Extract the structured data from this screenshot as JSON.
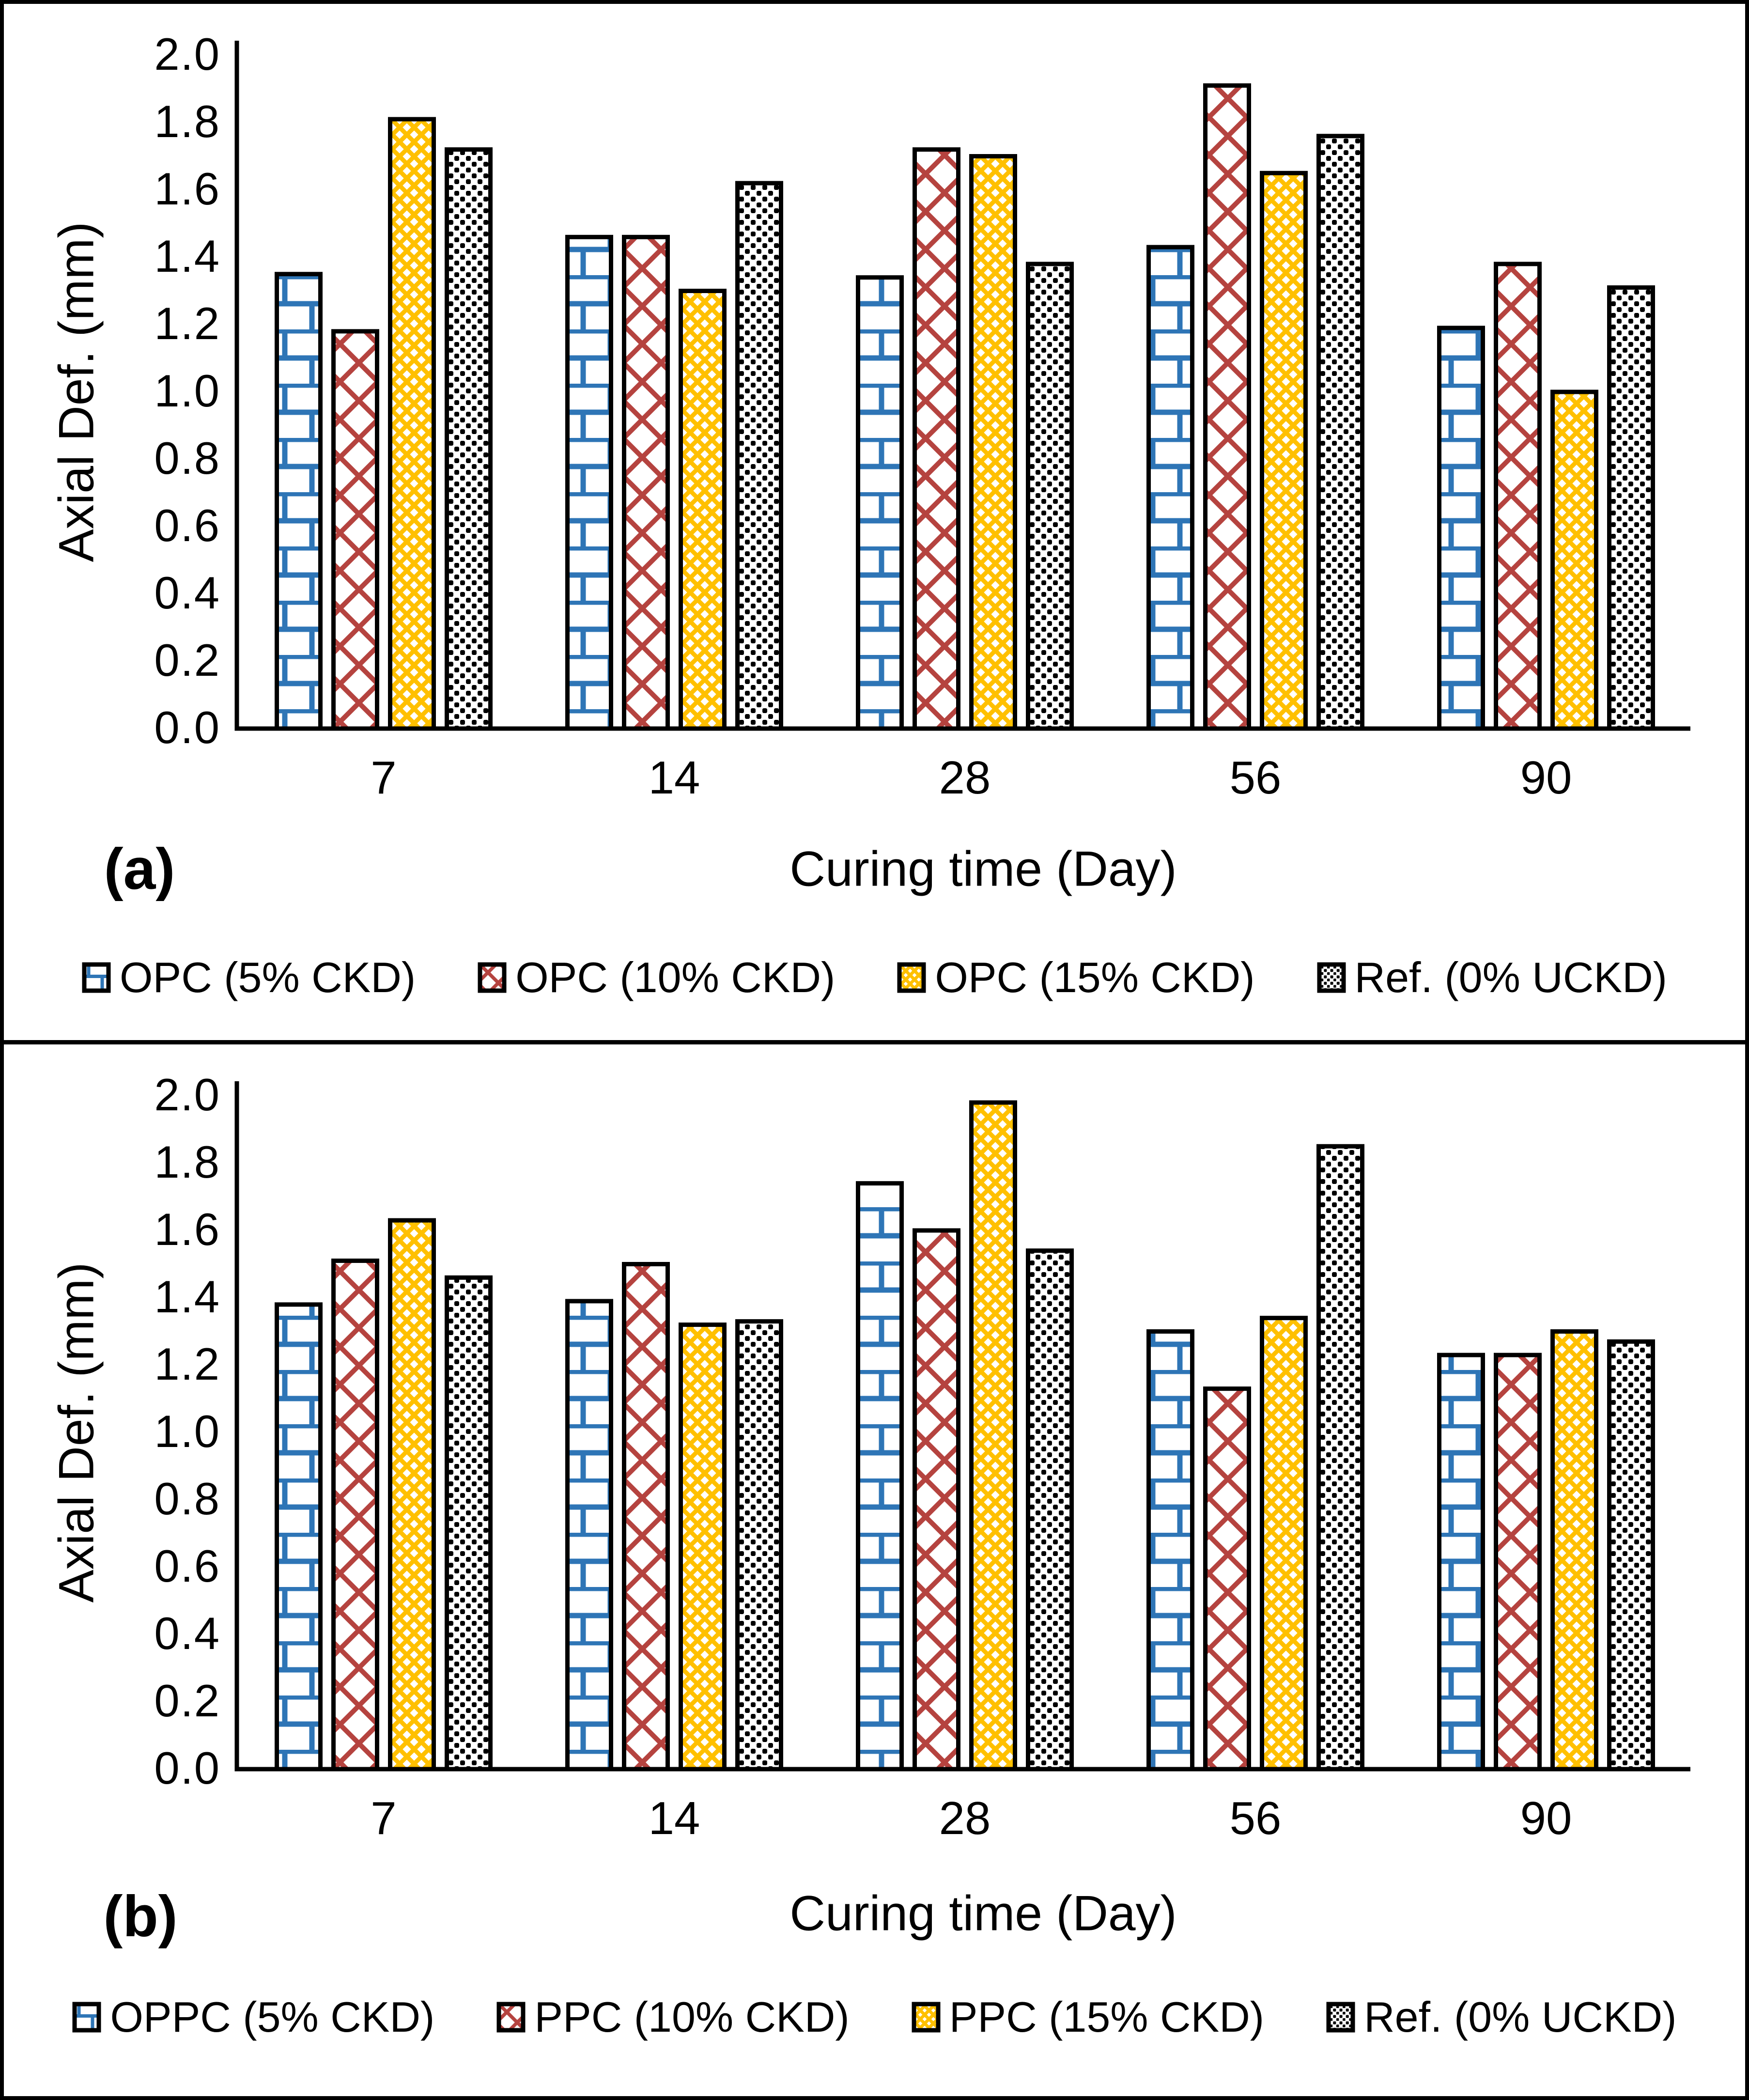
{
  "figure": {
    "panels": [
      {
        "label": "(a)"
      },
      {
        "label": "(b)"
      }
    ],
    "colors": {
      "series_blue": "#2E75B6",
      "series_red": "#B5433F",
      "series_gold": "#FFC000",
      "series_dots": "#000000",
      "axis": "#000000",
      "background": "#FFFFFF"
    }
  },
  "chart_data": [
    {
      "type": "bar",
      "title": "",
      "xlabel": "Curing time (Day)",
      "ylabel": "Axial Def. (mm)",
      "ylim": [
        0.0,
        2.0
      ],
      "ytick_step": 0.2,
      "grid": false,
      "legend_position": "bottom",
      "categories": [
        "7",
        "14",
        "28",
        "56",
        "90"
      ],
      "series": [
        {
          "name": "OPC (5% CKD)",
          "pattern": "brick",
          "color": "#2E75B6",
          "values": [
            1.35,
            1.46,
            1.34,
            1.43,
            1.19
          ]
        },
        {
          "name": "OPC (10% CKD)",
          "pattern": "crosshatch",
          "color": "#B5433F",
          "values": [
            1.18,
            1.46,
            1.72,
            1.91,
            1.38
          ]
        },
        {
          "name": "OPC (15% CKD)",
          "pattern": "diamond",
          "color": "#FFC000",
          "values": [
            1.81,
            1.3,
            1.7,
            1.65,
            1.0
          ]
        },
        {
          "name": "Ref. (0% UCKD)",
          "pattern": "dots",
          "color": "#000000",
          "values": [
            1.72,
            1.62,
            1.38,
            1.76,
            1.31
          ]
        }
      ]
    },
    {
      "type": "bar",
      "title": "",
      "xlabel": "Curing time (Day)",
      "ylabel": "Axial Def. (mm)",
      "ylim": [
        0.0,
        2.0
      ],
      "ytick_step": 0.2,
      "grid": false,
      "legend_position": "bottom",
      "categories": [
        "7",
        "14",
        "28",
        "56",
        "90"
      ],
      "series": [
        {
          "name": "OPPC (5% CKD)",
          "pattern": "brick",
          "color": "#2E75B6",
          "values": [
            1.38,
            1.39,
            1.74,
            1.3,
            1.23
          ]
        },
        {
          "name": "PPC (10% CKD)",
          "pattern": "crosshatch",
          "color": "#B5433F",
          "values": [
            1.51,
            1.5,
            1.6,
            1.13,
            1.23
          ]
        },
        {
          "name": "PPC (15% CKD)",
          "pattern": "diamond",
          "color": "#FFC000",
          "values": [
            1.63,
            1.32,
            1.98,
            1.34,
            1.3
          ]
        },
        {
          "name": "Ref. (0% UCKD)",
          "pattern": "dots",
          "color": "#000000",
          "values": [
            1.46,
            1.33,
            1.54,
            1.85,
            1.27
          ]
        }
      ]
    }
  ]
}
